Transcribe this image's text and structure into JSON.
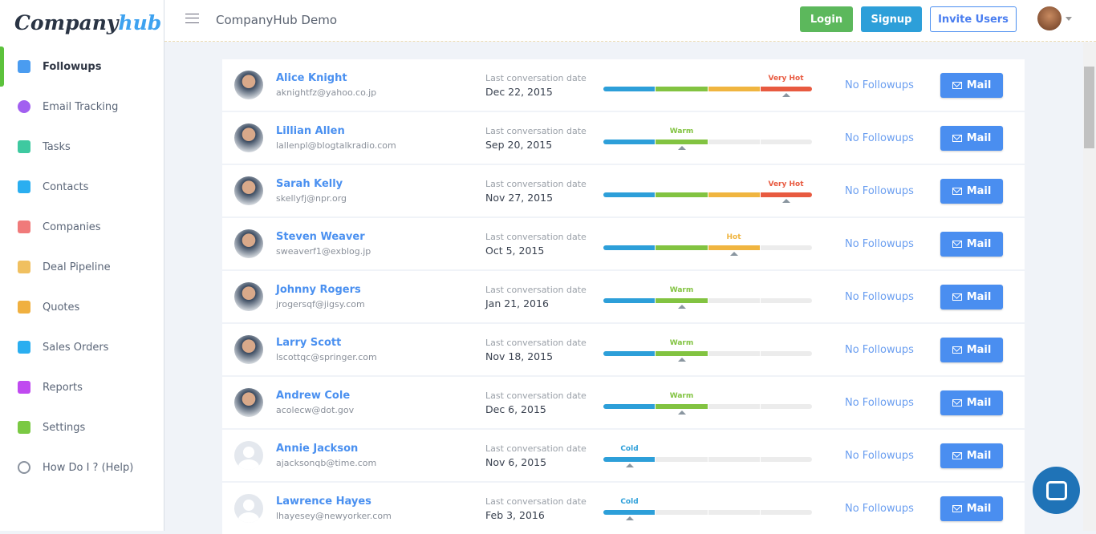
{
  "logo": {
    "part1": "Company",
    "part2": "hub"
  },
  "sidebar": {
    "items": [
      {
        "label": "Followups",
        "icon": "mail-icon",
        "color": "#4a9cf0",
        "active": true
      },
      {
        "label": "Email Tracking",
        "icon": "eye-icon",
        "color": "#a25ff0"
      },
      {
        "label": "Tasks",
        "icon": "clipboard-check-icon",
        "color": "#3ec9a0"
      },
      {
        "label": "Contacts",
        "icon": "contact-card-icon",
        "color": "#2aaef0"
      },
      {
        "label": "Companies",
        "icon": "building-icon",
        "color": "#f07a7a"
      },
      {
        "label": "Deal Pipeline",
        "icon": "pipeline-icon",
        "color": "#f0c060"
      },
      {
        "label": "Quotes",
        "icon": "percent-badge-icon",
        "color": "#f0b040"
      },
      {
        "label": "Sales Orders",
        "icon": "percent-badge-icon",
        "color": "#2aaef0"
      },
      {
        "label": "Reports",
        "icon": "bar-chart-icon",
        "color": "#c04af0"
      },
      {
        "label": "Settings",
        "icon": "user-gear-icon",
        "color": "#7ac943"
      },
      {
        "label": "How Do I ? (Help)",
        "icon": "help-circle-icon",
        "color": "#8a929e"
      }
    ]
  },
  "header": {
    "title": "CompanyHub Demo",
    "login": "Login",
    "signup": "Signup",
    "invite": "Invite Users"
  },
  "labels": {
    "last_conv": "Last conversation date",
    "no_followups": "No Followups",
    "mail": "Mail"
  },
  "temperature_colors": [
    "#2d9fd9",
    "#82c341",
    "#f0b540",
    "#e85a40"
  ],
  "rows": [
    {
      "name": "Alice Knight",
      "email": "aknightfz@yahoo.co.jp",
      "date": "Dec 22, 2015",
      "temp": "Very Hot",
      "level": 4,
      "photo": true
    },
    {
      "name": "Lillian Allen",
      "email": "lallenpl@blogtalkradio.com",
      "date": "Sep 20, 2015",
      "temp": "Warm",
      "level": 2,
      "photo": true
    },
    {
      "name": "Sarah Kelly",
      "email": "skellyfj@npr.org",
      "date": "Nov 27, 2015",
      "temp": "Very Hot",
      "level": 4,
      "photo": true
    },
    {
      "name": "Steven Weaver",
      "email": "sweaverf1@exblog.jp",
      "date": "Oct 5, 2015",
      "temp": "Hot",
      "level": 3,
      "photo": true
    },
    {
      "name": "Johnny Rogers",
      "email": "jrogersqf@jigsy.com",
      "date": "Jan 21, 2016",
      "temp": "Warm",
      "level": 2,
      "photo": true
    },
    {
      "name": "Larry Scott",
      "email": "lscottqc@springer.com",
      "date": "Nov 18, 2015",
      "temp": "Warm",
      "level": 2,
      "photo": true
    },
    {
      "name": "Andrew Cole",
      "email": "acolecw@dot.gov",
      "date": "Dec 6, 2015",
      "temp": "Warm",
      "level": 2,
      "photo": true
    },
    {
      "name": "Annie Jackson",
      "email": "ajacksonqb@time.com",
      "date": "Nov 6, 2015",
      "temp": "Cold",
      "level": 1,
      "photo": false
    },
    {
      "name": "Lawrence Hayes",
      "email": "lhayesey@newyorker.com",
      "date": "Feb 3, 2016",
      "temp": "Cold",
      "level": 1,
      "photo": false
    }
  ]
}
